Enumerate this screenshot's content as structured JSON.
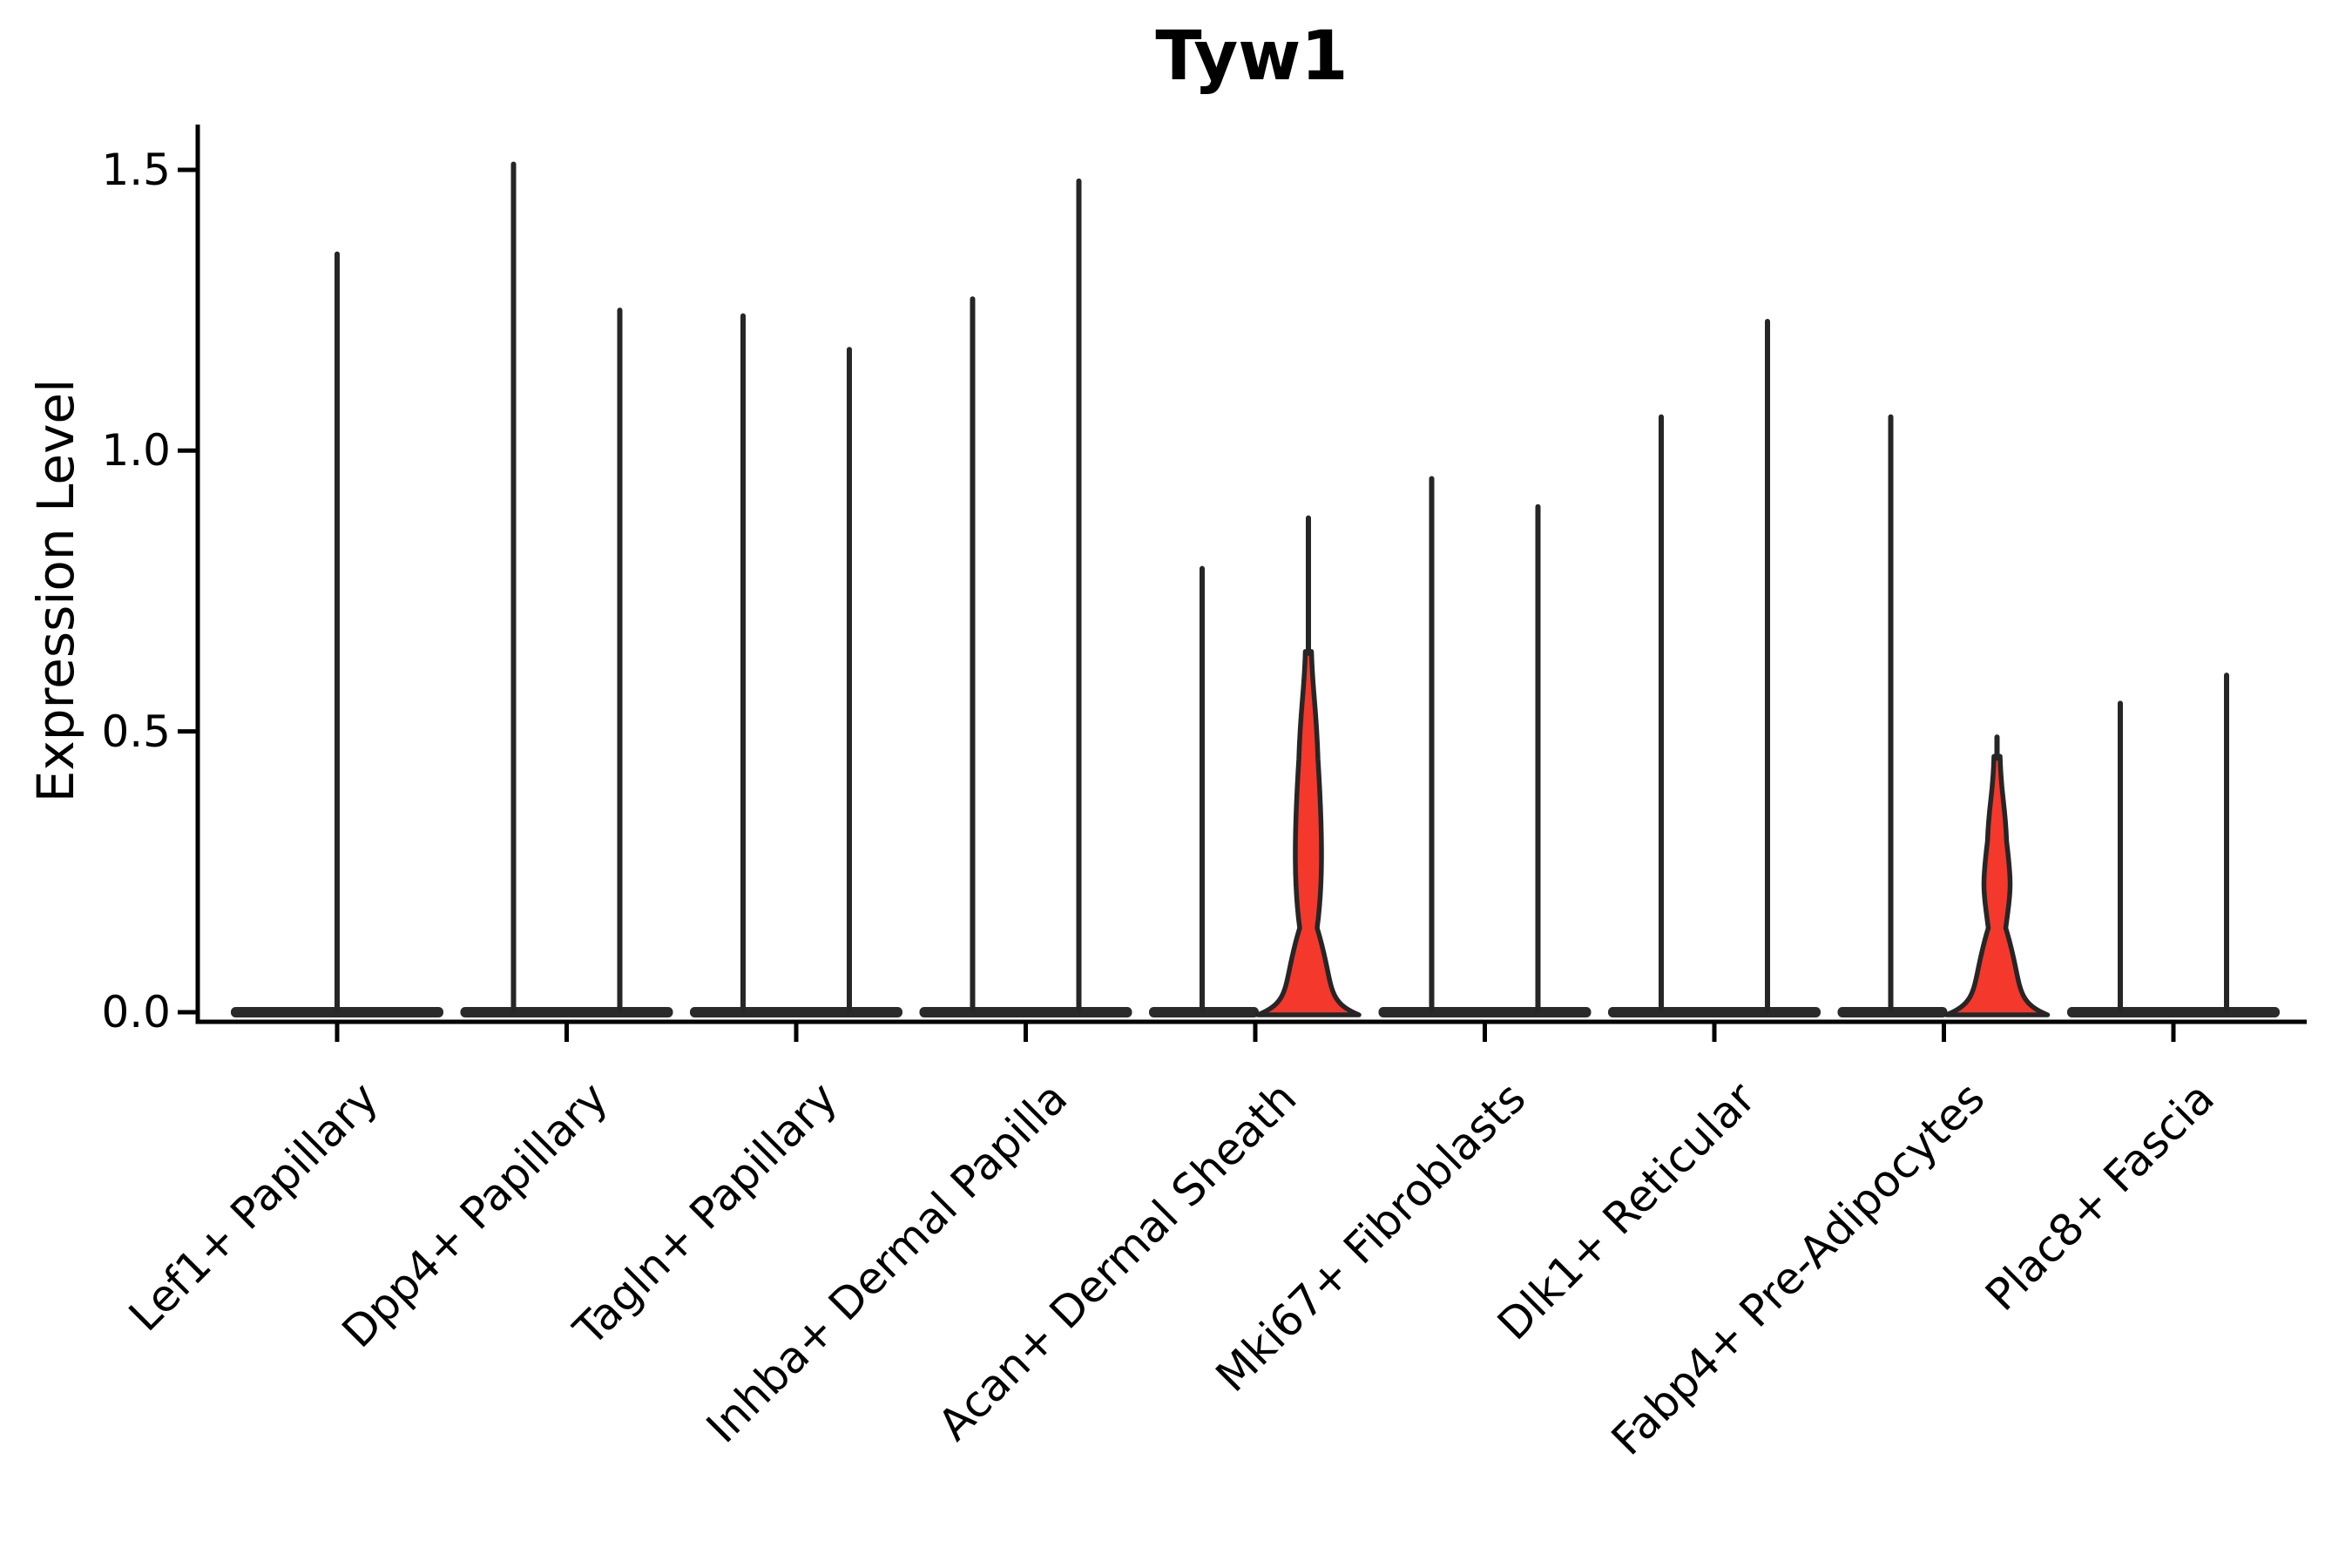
{
  "chart_data": {
    "type": "violin",
    "title": "Tyw1",
    "ylabel": "Expression Level",
    "xlabel": "",
    "grid": false,
    "legend": null,
    "ylim": [
      0,
      1.55
    ],
    "y_ticks": [
      {
        "label": "0.0",
        "value": 0.0
      },
      {
        "label": "0.5",
        "value": 0.5
      },
      {
        "label": "1.0",
        "value": 1.0
      },
      {
        "label": "1.5",
        "value": 1.5
      }
    ],
    "colors": {
      "violin_outline": "#262626",
      "violin_collapsed": "#2a2a2a",
      "highlight_fill": "#f5382c",
      "axis": "#000000"
    },
    "categories": [
      {
        "label": "Lef1+ Papillary",
        "violins": [
          {
            "side": "center",
            "max_expression": 1.35,
            "filled": false
          }
        ]
      },
      {
        "label": "Dpp4+ Papillary",
        "violins": [
          {
            "side": "left",
            "max_expression": 1.51,
            "filled": false
          },
          {
            "side": "right",
            "max_expression": 1.25,
            "filled": false
          }
        ]
      },
      {
        "label": "Tagln+ Papillary",
        "violins": [
          {
            "side": "left",
            "max_expression": 1.24,
            "filled": false
          },
          {
            "side": "right",
            "max_expression": 1.18,
            "filled": false
          }
        ]
      },
      {
        "label": "Inhba+ Dermal Papilla",
        "violins": [
          {
            "side": "left",
            "max_expression": 1.27,
            "filled": false
          },
          {
            "side": "right",
            "max_expression": 1.48,
            "filled": false
          }
        ]
      },
      {
        "label": "Acan+ Dermal Sheath",
        "violins": [
          {
            "side": "left",
            "max_expression": 0.79,
            "filled": false
          },
          {
            "side": "right",
            "max_expression": 0.88,
            "filled": true
          }
        ]
      },
      {
        "label": "Mki67+ Fibroblasts",
        "violins": [
          {
            "side": "left",
            "max_expression": 0.95,
            "filled": false
          },
          {
            "side": "right",
            "max_expression": 0.9,
            "filled": false
          }
        ]
      },
      {
        "label": "Dlk1+ Reticular",
        "violins": [
          {
            "side": "left",
            "max_expression": 1.06,
            "filled": false
          },
          {
            "side": "right",
            "max_expression": 1.23,
            "filled": false
          }
        ]
      },
      {
        "label": "Fabp4+ Pre-Adipocytes",
        "violins": [
          {
            "side": "left",
            "max_expression": 1.06,
            "filled": false
          },
          {
            "side": "right",
            "max_expression": 0.49,
            "filled": true
          }
        ]
      },
      {
        "label": "Plac8+ Fascia",
        "violins": [
          {
            "side": "left",
            "max_expression": 0.55,
            "filled": false
          },
          {
            "side": "right",
            "max_expression": 0.6,
            "filled": false
          }
        ]
      }
    ]
  }
}
